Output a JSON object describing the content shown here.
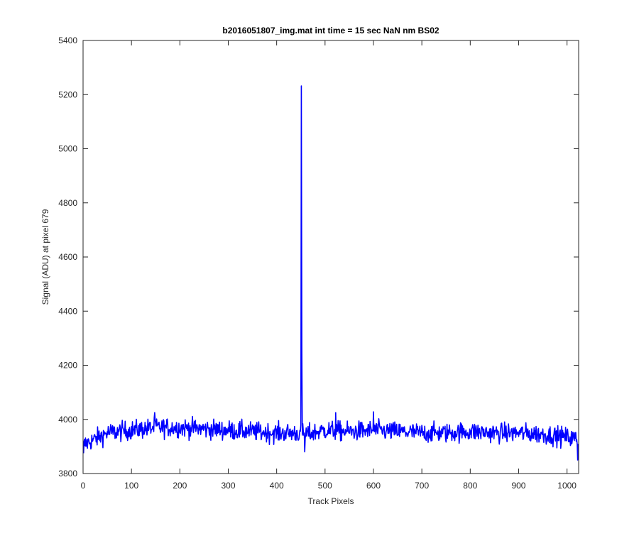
{
  "chart_data": {
    "type": "line",
    "title": "b2016051807_img.mat int time = 15 sec  NaN nm BS02",
    "xlabel": "Track Pixels",
    "ylabel": "Signal (ADU) at pixel 679",
    "xlim": [
      0,
      1024
    ],
    "ylim": [
      3800,
      5400
    ],
    "xticks": [
      0,
      100,
      200,
      300,
      400,
      500,
      600,
      700,
      800,
      900,
      1000
    ],
    "yticks": [
      3800,
      4000,
      4200,
      4400,
      4600,
      4800,
      5000,
      5200,
      5400
    ],
    "grid": false,
    "legend": "none",
    "series": [
      {
        "color": "#0000ff",
        "baseline_profile": [
          [
            0,
            3905
          ],
          [
            50,
            3950
          ],
          [
            100,
            3960
          ],
          [
            150,
            3970
          ],
          [
            200,
            3970
          ],
          [
            250,
            3965
          ],
          [
            300,
            3960
          ],
          [
            350,
            3955
          ],
          [
            400,
            3950
          ],
          [
            440,
            3950
          ],
          [
            460,
            3945
          ],
          [
            500,
            3960
          ],
          [
            550,
            3955
          ],
          [
            600,
            3960
          ],
          [
            650,
            3955
          ],
          [
            700,
            3950
          ],
          [
            750,
            3950
          ],
          [
            800,
            3955
          ],
          [
            850,
            3950
          ],
          [
            900,
            3950
          ],
          [
            950,
            3945
          ],
          [
            1000,
            3935
          ],
          [
            1024,
            3925
          ]
        ],
        "noise_amplitude_adu": 18,
        "spike": {
          "x": 451,
          "y": 5232
        },
        "notable_points": [
          [
            1,
            3875
          ],
          [
            148,
            4025
          ],
          [
            452,
            4270
          ],
          [
            458,
            3880
          ],
          [
            522,
            4025
          ],
          [
            600,
            4028
          ],
          [
            1022,
            3850
          ]
        ]
      }
    ]
  }
}
